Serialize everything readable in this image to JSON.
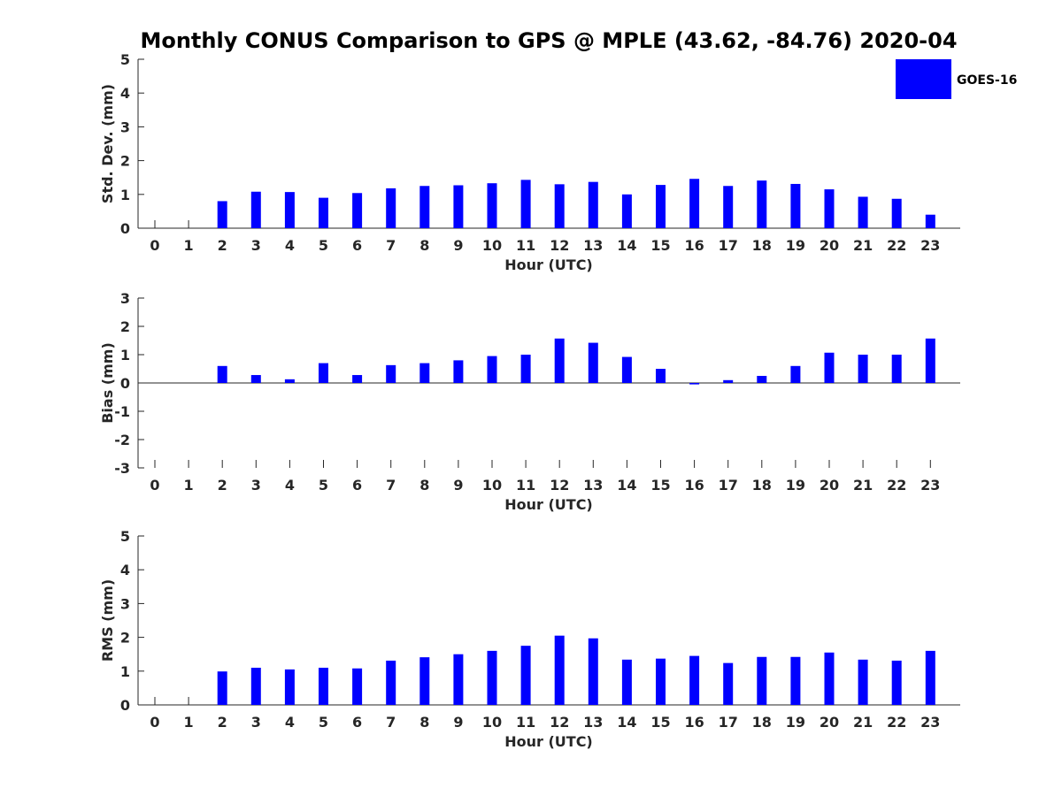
{
  "figure": {
    "title": "Monthly CONUS Comparison to GPS @ MPLE (43.62, -84.76) 2020-04"
  },
  "legend": {
    "entries": [
      {
        "name": "GOES-16",
        "color": "#0000ff"
      }
    ],
    "placement": "top-right"
  },
  "chart_data": [
    {
      "type": "bar",
      "xlabel": "Hour (UTC)",
      "ylabel": "Std. Dev. (mm)",
      "ylim": [
        0,
        5
      ],
      "yticks": [
        0,
        1,
        2,
        3,
        4,
        5
      ],
      "categories": [
        "0",
        "1",
        "2",
        "3",
        "4",
        "5",
        "6",
        "7",
        "8",
        "9",
        "10",
        "11",
        "12",
        "13",
        "14",
        "15",
        "16",
        "17",
        "18",
        "19",
        "20",
        "21",
        "22",
        "23"
      ],
      "series": [
        {
          "name": "GOES-16",
          "color": "#0000ff",
          "values": [
            null,
            null,
            0.8,
            1.08,
            1.07,
            0.9,
            1.04,
            1.18,
            1.25,
            1.27,
            1.33,
            1.43,
            1.3,
            1.37,
            1.0,
            1.28,
            1.46,
            1.25,
            1.41,
            1.31,
            1.15,
            0.93,
            0.87,
            0.4
          ]
        }
      ],
      "grid": false
    },
    {
      "type": "bar",
      "xlabel": "Hour (UTC)",
      "ylabel": "Bias (mm)",
      "ylim": [
        -3,
        3
      ],
      "yticks": [
        -3,
        -2,
        -1,
        0,
        1,
        2,
        3
      ],
      "categories": [
        "0",
        "1",
        "2",
        "3",
        "4",
        "5",
        "6",
        "7",
        "8",
        "9",
        "10",
        "11",
        "12",
        "13",
        "14",
        "15",
        "16",
        "17",
        "18",
        "19",
        "20",
        "21",
        "22",
        "23"
      ],
      "series": [
        {
          "name": "GOES-16",
          "color": "#0000ff",
          "values": [
            null,
            null,
            0.6,
            0.28,
            0.13,
            0.7,
            0.28,
            0.63,
            0.7,
            0.8,
            0.95,
            1.0,
            1.57,
            1.42,
            0.92,
            0.5,
            -0.05,
            0.1,
            0.25,
            0.6,
            1.07,
            1.0,
            1.0,
            1.57
          ]
        }
      ],
      "grid": false
    },
    {
      "type": "bar",
      "xlabel": "Hour (UTC)",
      "ylabel": "RMS (mm)",
      "ylim": [
        0,
        5
      ],
      "yticks": [
        0,
        1,
        2,
        3,
        4,
        5
      ],
      "categories": [
        "0",
        "1",
        "2",
        "3",
        "4",
        "5",
        "6",
        "7",
        "8",
        "9",
        "10",
        "11",
        "12",
        "13",
        "14",
        "15",
        "16",
        "17",
        "18",
        "19",
        "20",
        "21",
        "22",
        "23"
      ],
      "series": [
        {
          "name": "GOES-16",
          "color": "#0000ff",
          "values": [
            null,
            null,
            0.99,
            1.1,
            1.05,
            1.1,
            1.08,
            1.31,
            1.41,
            1.5,
            1.6,
            1.75,
            2.05,
            1.97,
            1.34,
            1.37,
            1.45,
            1.24,
            1.42,
            1.42,
            1.55,
            1.34,
            1.31,
            1.6
          ]
        }
      ],
      "grid": false
    }
  ]
}
